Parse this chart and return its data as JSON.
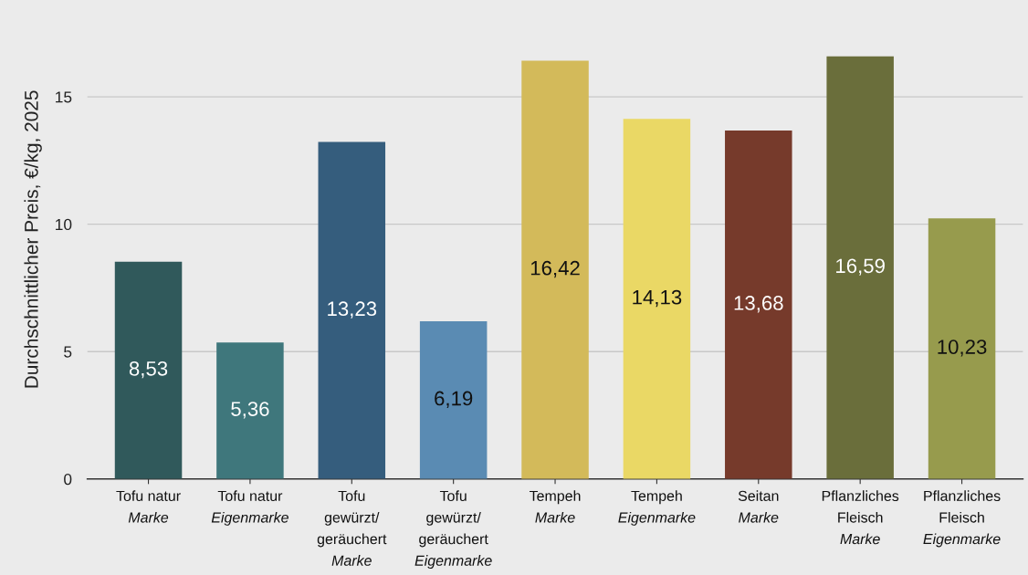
{
  "chart_data": {
    "type": "bar",
    "ylabel": "Durchschnittlicher Preis, €/kg, 2025",
    "categories": [
      "Tofu natur\nMarke",
      "Tofu natur\nEigenmarke",
      "Tofu\ngewürzt/\ngeräuchert\nMarke",
      "Tofu\ngewürzt/\ngeräuchert\nEigenmarke",
      "Tempeh\nMarke",
      "Tempeh\nEigenmarke",
      "Seitan\nMarke",
      "Pflanzliches\nFleisch\nMarke",
      "Pflanzliches\nFleisch\nEigenmarke"
    ],
    "values": [
      8.53,
      5.36,
      13.23,
      6.19,
      16.42,
      14.13,
      13.68,
      16.59,
      10.23
    ],
    "value_labels": [
      "8,53",
      "5,36",
      "13,23",
      "6,19",
      "16,42",
      "14,13",
      "13,68",
      "16,59",
      "10,23"
    ],
    "colors": [
      "#30595b",
      "#3f777c",
      "#355d7d",
      "#5a8bb3",
      "#d3ba5a",
      "#ead865",
      "#763a2b",
      "#6a6e3b",
      "#979b4d"
    ],
    "ylim": [
      0,
      18.8
    ],
    "yticks": [
      0,
      5,
      10,
      15
    ],
    "grid": "y"
  }
}
